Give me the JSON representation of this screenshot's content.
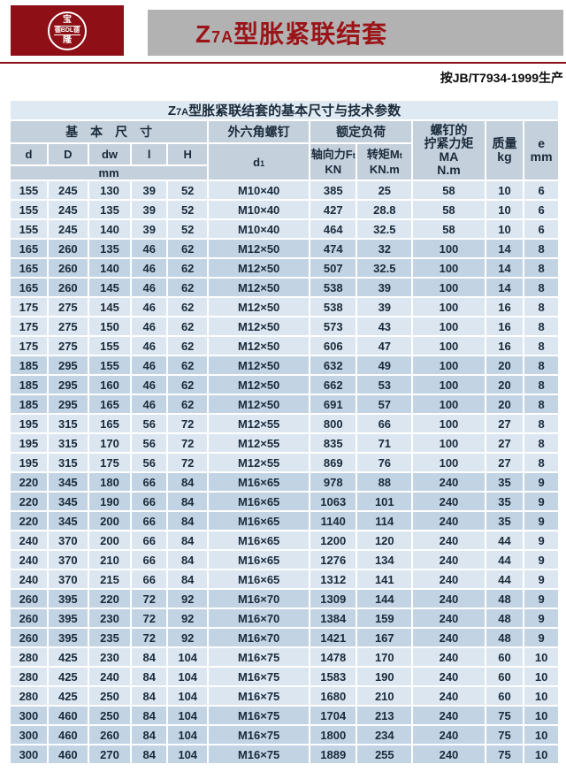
{
  "header": {
    "logo": {
      "top": "宝",
      "middle": "德BDL德",
      "bottom": "隆"
    },
    "title": {
      "prefix": "Z",
      "sub": "7A",
      "suffix": "型胀紧联结套"
    },
    "standard_note": "按JB/T7934-1999生产"
  },
  "table": {
    "title": {
      "prefix": "Z",
      "sub": "7A",
      "suffix": "型胀紧联结套的基本尺寸与技术参数"
    },
    "groups": {
      "basic_dims": "基　本　尺　寸",
      "hex_screw": "外六角螺钉",
      "rated_load": "额定负荷"
    },
    "columns": {
      "d": "d",
      "D": "D",
      "dw": "dw",
      "l": "l",
      "H": "H",
      "d1_main": "d",
      "d1_sub": "1",
      "axial_main": "轴向力F",
      "axial_sub": "t",
      "axial_unit": "KN",
      "torque_main": "转矩M",
      "torque_sub": "t",
      "torque_unit": "KN.m"
    },
    "tightening": [
      "螺钉的",
      "拧紧力矩",
      "MA",
      "N.m"
    ],
    "mass": [
      "质量",
      "kg"
    ],
    "e_col": [
      "e",
      "mm"
    ],
    "unit_row": "mm",
    "rows": [
      [
        "155",
        "245",
        "130",
        "39",
        "52",
        "M10×40",
        "385",
        "25",
        "58",
        "10",
        "6"
      ],
      [
        "155",
        "245",
        "135",
        "39",
        "52",
        "M10×40",
        "427",
        "28.8",
        "58",
        "10",
        "6"
      ],
      [
        "155",
        "245",
        "140",
        "39",
        "52",
        "M10×40",
        "464",
        "32.5",
        "58",
        "10",
        "6"
      ],
      [
        "165",
        "260",
        "135",
        "46",
        "62",
        "M12×50",
        "474",
        "32",
        "100",
        "14",
        "8"
      ],
      [
        "165",
        "260",
        "140",
        "46",
        "62",
        "M12×50",
        "507",
        "32.5",
        "100",
        "14",
        "8"
      ],
      [
        "165",
        "260",
        "145",
        "46",
        "62",
        "M12×50",
        "538",
        "39",
        "100",
        "14",
        "8"
      ],
      [
        "175",
        "275",
        "145",
        "46",
        "62",
        "M12×50",
        "538",
        "39",
        "100",
        "16",
        "8"
      ],
      [
        "175",
        "275",
        "150",
        "46",
        "62",
        "M12×50",
        "573",
        "43",
        "100",
        "16",
        "8"
      ],
      [
        "175",
        "275",
        "155",
        "46",
        "62",
        "M12×50",
        "606",
        "47",
        "100",
        "16",
        "8"
      ],
      [
        "185",
        "295",
        "155",
        "46",
        "62",
        "M12×50",
        "632",
        "49",
        "100",
        "20",
        "8"
      ],
      [
        "185",
        "295",
        "160",
        "46",
        "62",
        "M12×50",
        "662",
        "53",
        "100",
        "20",
        "8"
      ],
      [
        "185",
        "295",
        "165",
        "46",
        "62",
        "M12×50",
        "691",
        "57",
        "100",
        "20",
        "8"
      ],
      [
        "195",
        "315",
        "165",
        "56",
        "72",
        "M12×55",
        "800",
        "66",
        "100",
        "27",
        "8"
      ],
      [
        "195",
        "315",
        "170",
        "56",
        "72",
        "M12×55",
        "835",
        "71",
        "100",
        "27",
        "8"
      ],
      [
        "195",
        "315",
        "175",
        "56",
        "72",
        "M12×55",
        "869",
        "76",
        "100",
        "27",
        "8"
      ],
      [
        "220",
        "345",
        "180",
        "66",
        "84",
        "M16×65",
        "978",
        "88",
        "240",
        "35",
        "9"
      ],
      [
        "220",
        "345",
        "190",
        "66",
        "84",
        "M16×65",
        "1063",
        "101",
        "240",
        "35",
        "9"
      ],
      [
        "220",
        "345",
        "200",
        "66",
        "84",
        "M16×65",
        "1140",
        "114",
        "240",
        "35",
        "9"
      ],
      [
        "240",
        "370",
        "200",
        "66",
        "84",
        "M16×65",
        "1200",
        "120",
        "240",
        "44",
        "9"
      ],
      [
        "240",
        "370",
        "210",
        "66",
        "84",
        "M16×65",
        "1276",
        "134",
        "240",
        "44",
        "9"
      ],
      [
        "240",
        "370",
        "215",
        "66",
        "84",
        "M16×65",
        "1312",
        "141",
        "240",
        "44",
        "9"
      ],
      [
        "260",
        "395",
        "220",
        "72",
        "92",
        "M16×70",
        "1309",
        "144",
        "240",
        "48",
        "9"
      ],
      [
        "260",
        "395",
        "230",
        "72",
        "92",
        "M16×70",
        "1384",
        "159",
        "240",
        "48",
        "9"
      ],
      [
        "260",
        "395",
        "235",
        "72",
        "92",
        "M16×70",
        "1421",
        "167",
        "240",
        "48",
        "9"
      ],
      [
        "280",
        "425",
        "230",
        "84",
        "104",
        "M16×75",
        "1478",
        "170",
        "240",
        "60",
        "10"
      ],
      [
        "280",
        "425",
        "240",
        "84",
        "104",
        "M16×75",
        "1583",
        "190",
        "240",
        "60",
        "10"
      ],
      [
        "280",
        "425",
        "250",
        "84",
        "104",
        "M16×75",
        "1680",
        "210",
        "240",
        "60",
        "10"
      ],
      [
        "300",
        "460",
        "250",
        "84",
        "104",
        "M16×75",
        "1704",
        "213",
        "240",
        "75",
        "10"
      ],
      [
        "300",
        "460",
        "260",
        "84",
        "104",
        "M16×75",
        "1800",
        "234",
        "240",
        "75",
        "10"
      ],
      [
        "300",
        "460",
        "270",
        "84",
        "104",
        "M16×75",
        "1889",
        "255",
        "240",
        "75",
        "10"
      ]
    ]
  }
}
